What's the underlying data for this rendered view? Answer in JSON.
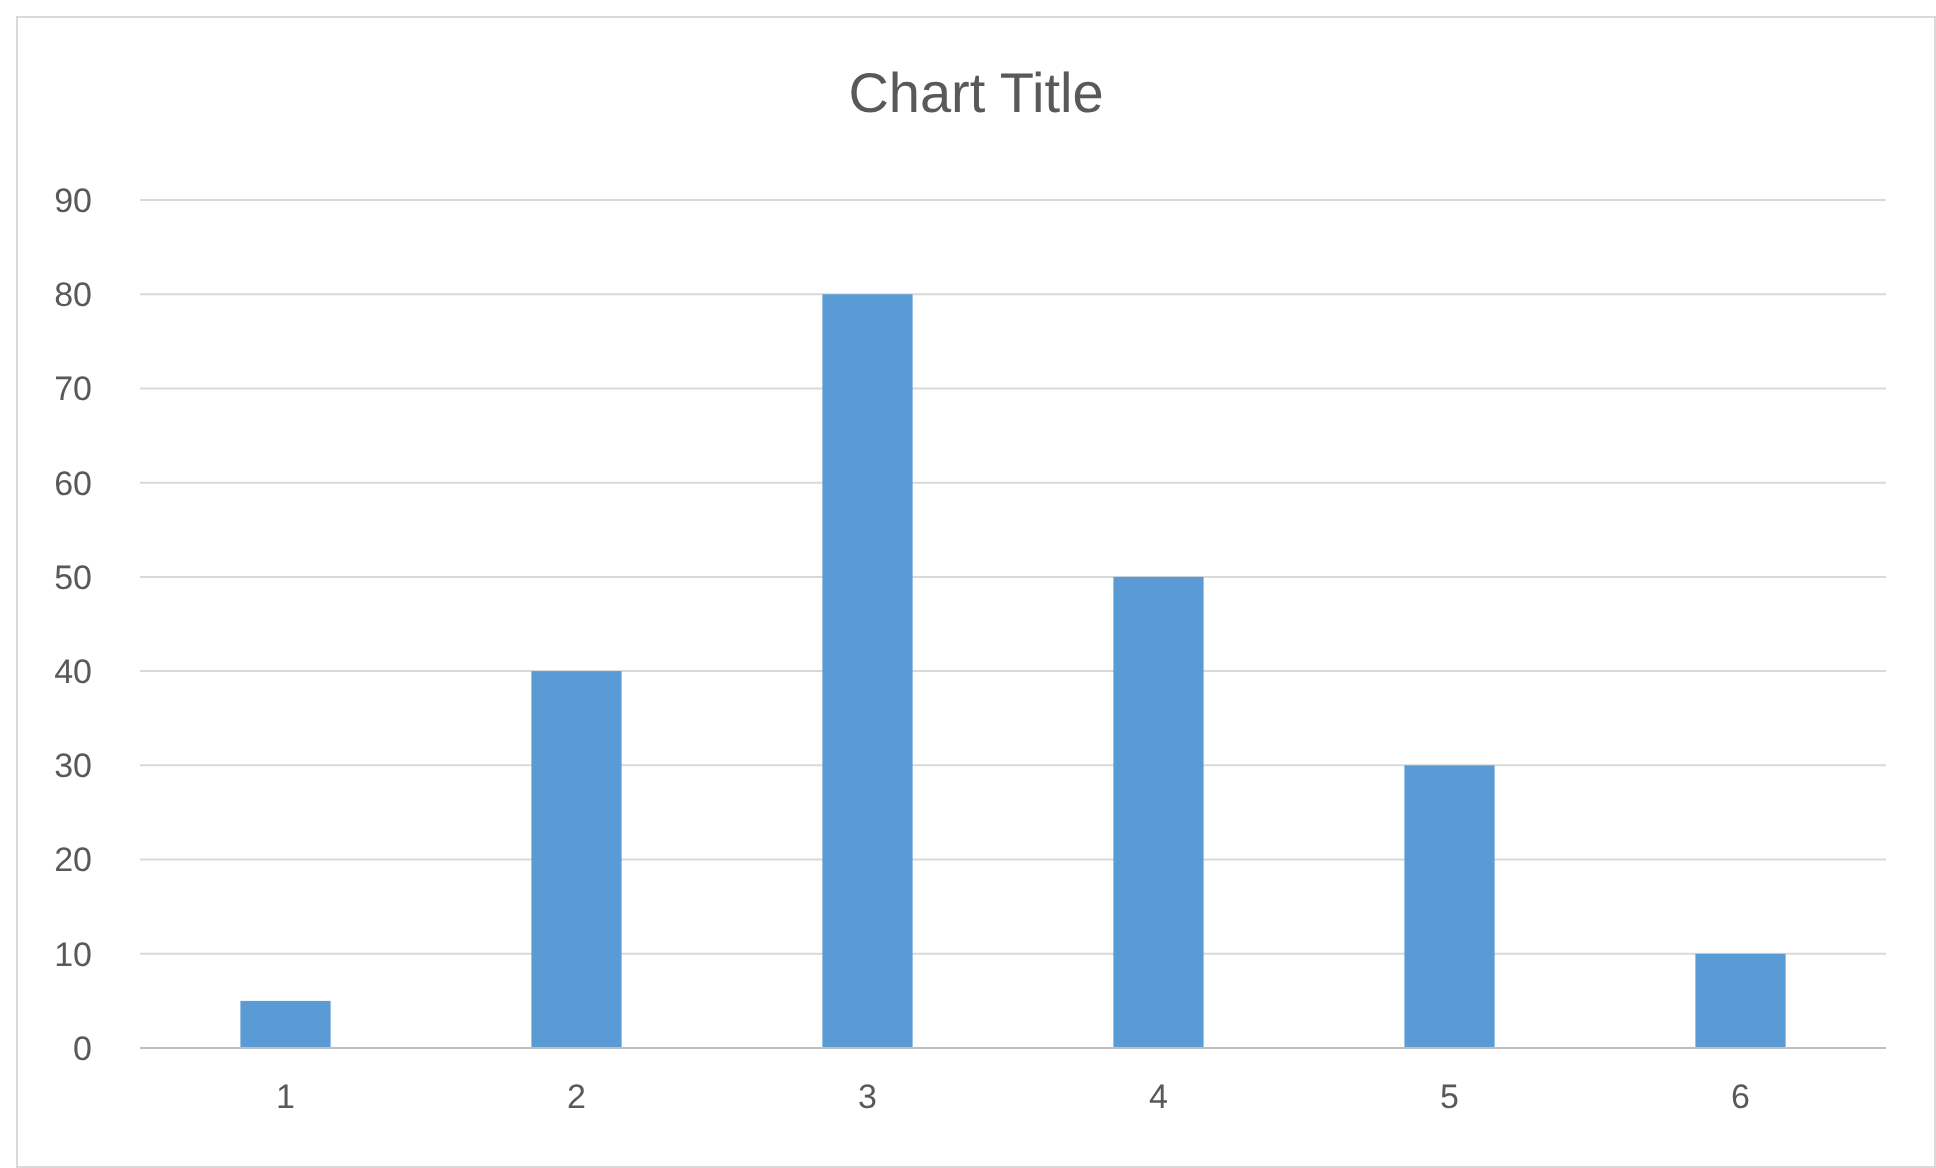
{
  "chart_data": {
    "type": "bar",
    "title": "Chart Title",
    "categories": [
      "1",
      "2",
      "3",
      "4",
      "5",
      "6"
    ],
    "values": [
      5,
      40,
      80,
      50,
      30,
      10
    ],
    "color": "#5b9bd5",
    "ylim": [
      0,
      90
    ],
    "yticks": [
      0,
      10,
      20,
      30,
      40,
      50,
      60,
      70,
      80,
      90
    ],
    "grid": "y"
  }
}
